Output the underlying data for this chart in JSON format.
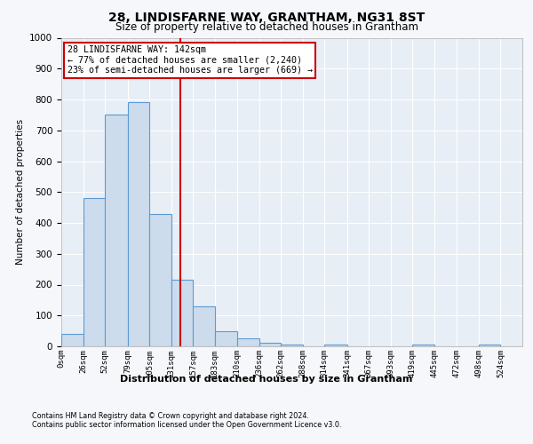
{
  "title": "28, LINDISFARNE WAY, GRANTHAM, NG31 8ST",
  "subtitle": "Size of property relative to detached houses in Grantham",
  "xlabel": "Distribution of detached houses by size in Grantham",
  "ylabel": "Number of detached properties",
  "bar_labels": [
    "0sqm",
    "26sqm",
    "52sqm",
    "79sqm",
    "105sqm",
    "131sqm",
    "157sqm",
    "183sqm",
    "210sqm",
    "236sqm",
    "262sqm",
    "288sqm",
    "314sqm",
    "341sqm",
    "367sqm",
    "393sqm",
    "419sqm",
    "445sqm",
    "472sqm",
    "498sqm",
    "524sqm"
  ],
  "bin_edges": [
    0,
    26,
    52,
    79,
    105,
    131,
    157,
    183,
    210,
    236,
    262,
    288,
    314,
    341,
    367,
    393,
    419,
    445,
    472,
    498,
    524,
    550
  ],
  "heights": [
    40,
    480,
    750,
    790,
    430,
    215,
    130,
    50,
    25,
    12,
    6,
    0,
    6,
    0,
    0,
    0,
    6,
    0,
    0,
    6,
    0
  ],
  "ylim": [
    0,
    1000
  ],
  "yticks": [
    0,
    100,
    200,
    300,
    400,
    500,
    600,
    700,
    800,
    900,
    1000
  ],
  "bar_color": "#ccdcec",
  "bar_edge_color": "#5b9bd5",
  "property_line_x": 142,
  "property_line_color": "#cc0000",
  "annotation_text": "28 LINDISFARNE WAY: 142sqm\n← 77% of detached houses are smaller (2,240)\n23% of semi-detached houses are larger (669) →",
  "annotation_box_color": "#cc0000",
  "footer_line1": "Contains HM Land Registry data © Crown copyright and database right 2024.",
  "footer_line2": "Contains public sector information licensed under the Open Government Licence v3.0.",
  "plot_bg_color": "#e8eef5",
  "fig_bg_color": "#f5f7fa",
  "grid_color": "#ffffff"
}
